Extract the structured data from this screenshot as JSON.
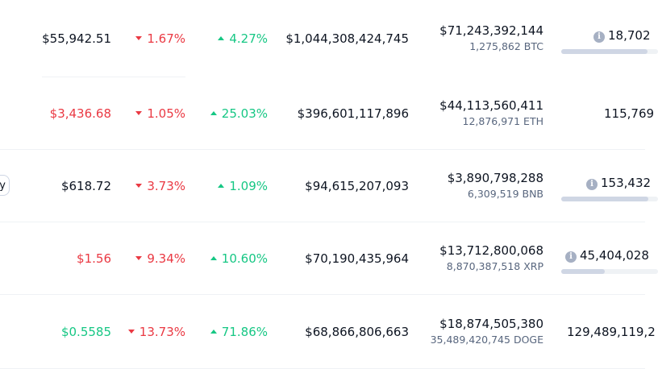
{
  "buy_button_label": "y",
  "colors": {
    "red": "#ea3943",
    "green": "#16c784",
    "text": "#0d1421",
    "muted": "#58667e"
  },
  "rows": [
    {
      "price": "$55,942.51",
      "price_color": "neutral",
      "change_1h": "1.67%",
      "change_1h_dir": "down",
      "change_7d": "4.27%",
      "change_7d_dir": "up",
      "market_cap": "$1,044,308,424,745",
      "volume": "$71,243,392,144",
      "volume_coin": "1,275,862 BTC",
      "supply": "18,702",
      "supply_info": true,
      "supply_bar": true,
      "supply_fill": 0.89
    },
    {
      "price": "$3,436.68",
      "price_color": "red",
      "change_1h": "1.05%",
      "change_1h_dir": "down",
      "change_7d": "25.03%",
      "change_7d_dir": "up",
      "market_cap": "$396,601,117,896",
      "volume": "$44,113,560,411",
      "volume_coin": "12,876,971 ETH",
      "supply": "115,769",
      "supply_info": false,
      "supply_bar": false,
      "supply_fill": 0
    },
    {
      "price": "$618.72",
      "price_color": "neutral",
      "change_1h": "3.73%",
      "change_1h_dir": "down",
      "change_7d": "1.09%",
      "change_7d_dir": "up",
      "market_cap": "$94,615,207,093",
      "volume": "$3,890,798,288",
      "volume_coin": "6,309,519 BNB",
      "supply": "153,432",
      "supply_info": true,
      "supply_bar": true,
      "supply_fill": 0.9
    },
    {
      "price": "$1.56",
      "price_color": "red",
      "change_1h": "9.34%",
      "change_1h_dir": "down",
      "change_7d": "10.60%",
      "change_7d_dir": "up",
      "market_cap": "$70,190,435,964",
      "volume": "$13,712,800,068",
      "volume_coin": "8,870,387,518 XRP",
      "supply": "45,404,028",
      "supply_info": true,
      "supply_bar": true,
      "supply_fill": 0.45
    },
    {
      "price": "$0.5585",
      "price_color": "green",
      "change_1h": "13.73%",
      "change_1h_dir": "down",
      "change_7d": "71.86%",
      "change_7d_dir": "up",
      "market_cap": "$68,866,806,663",
      "volume": "$18,874,505,380",
      "volume_coin": "35,489,420,745 DOGE",
      "supply": "129,489,119,2",
      "supply_info": false,
      "supply_bar": false,
      "supply_fill": 0
    }
  ]
}
